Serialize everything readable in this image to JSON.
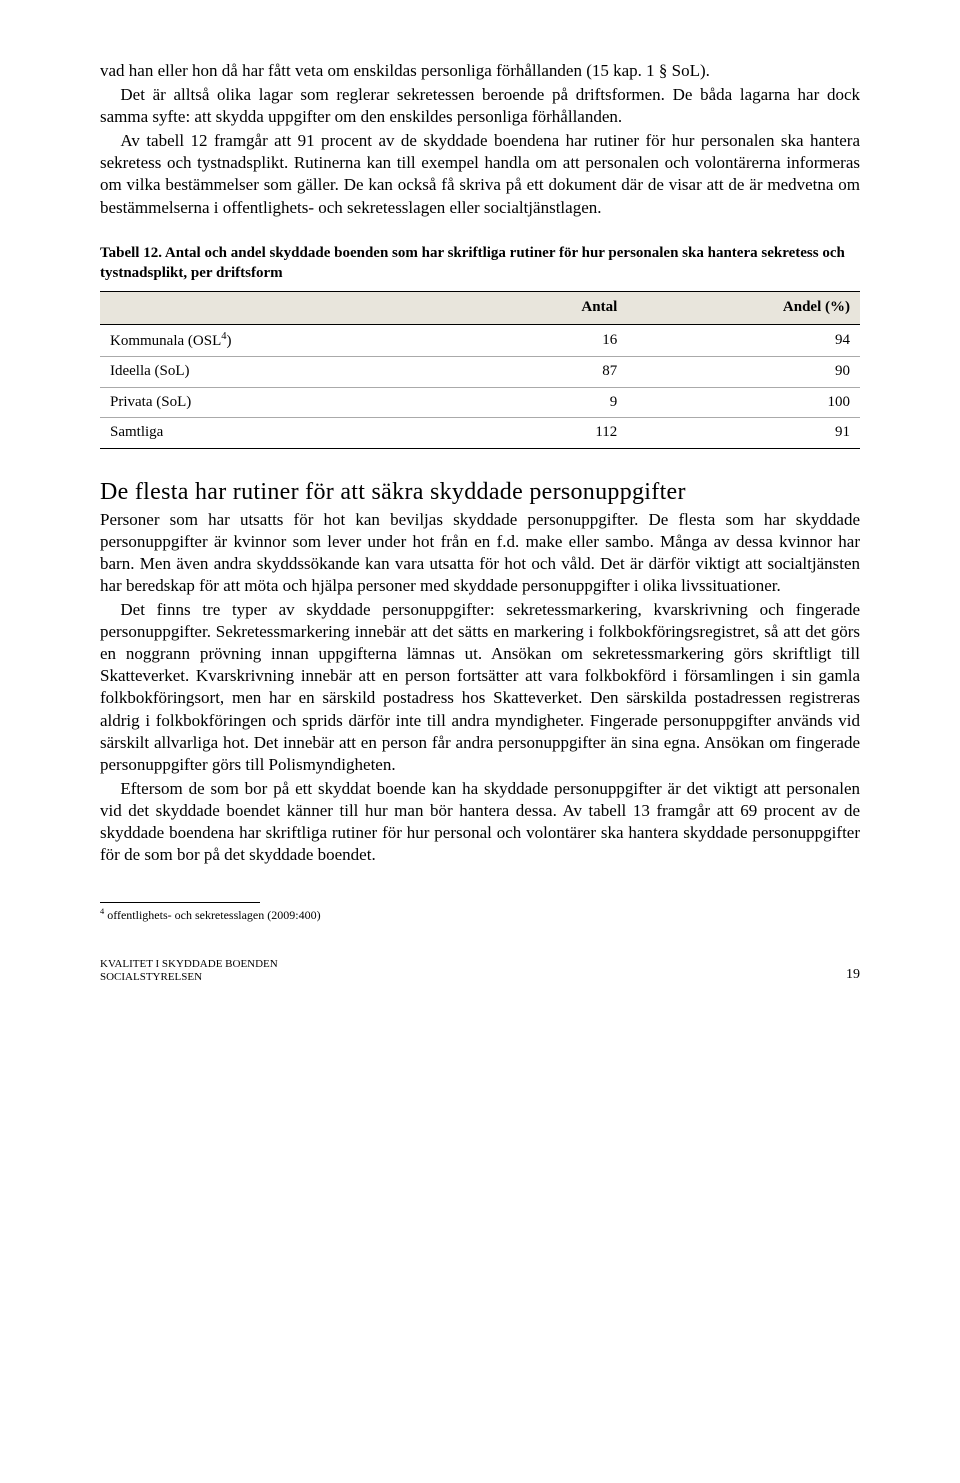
{
  "para1": "vad han eller hon då har fått veta om enskildas personliga förhållanden (15 kap. 1 § SoL).",
  "para2": "Det är alltså olika lagar som reglerar sekretessen beroende på driftsformen. De båda lagarna har dock samma syfte: att skydda uppgifter om den enskildes personliga förhållanden.",
  "para3": "Av tabell 12 framgår att 91 procent av de skyddade boendena har rutiner för hur personalen ska hantera sekretess och tystnadsplikt. Rutinerna kan till exempel handla om att personalen och volontärerna informeras om vilka bestämmelser som gäller. De kan också få skriva på ett dokument där de visar att de är medvetna om bestämmelserna i offentlighets- och sekretesslagen eller socialtjänstlagen.",
  "table": {
    "caption": "Tabell 12. Antal och andel skyddade boenden som har skriftliga rutiner för hur personalen ska hantera sekretess och tystnadsplikt, per driftsform",
    "columns": [
      "",
      "Antal",
      "Andel (%)"
    ],
    "rows": [
      {
        "label": "Kommunala (OSL",
        "sup": "4",
        "labelAfter": ")",
        "c1": "16",
        "c2": "94"
      },
      {
        "label": "Ideella (SoL)",
        "sup": "",
        "labelAfter": "",
        "c1": "87",
        "c2": "90"
      },
      {
        "label": "Privata (SoL)",
        "sup": "",
        "labelAfter": "",
        "c1": "9",
        "c2": "100"
      },
      {
        "label": "Samtliga",
        "sup": "",
        "labelAfter": "",
        "c1": "112",
        "c2": "91"
      }
    ]
  },
  "heading": "De flesta har rutiner för att säkra skyddade personuppgifter",
  "body1": "Personer som har utsatts för hot kan beviljas skyddade personuppgifter. De flesta som har skyddade personuppgifter är kvinnor som lever under hot från en f.d. make eller sambo. Många av dessa kvinnor har barn. Men även andra skyddssökande kan vara utsatta för hot och våld. Det är därför viktigt att socialtjänsten har beredskap för att möta och hjälpa personer med skyddade personuppgifter i olika livssituationer.",
  "body2": "Det finns tre typer av skyddade personuppgifter: sekretessmarkering, kvarskrivning och fingerade personuppgifter. Sekretessmarkering innebär att det sätts en markering i folkbokföringsregistret, så att det görs en noggrann prövning innan uppgifterna lämnas ut. Ansökan om sekretessmarkering görs skriftligt till Skatteverket. Kvarskrivning innebär att en person fortsätter att vara folkbokförd i församlingen i sin gamla folkbokföringsort, men har en särskild postadress hos Skatteverket. Den särskilda postadressen registreras aldrig i folkbokföringen och sprids därför inte till andra myndigheter. Fingerade personuppgifter används vid särskilt allvarliga hot. Det innebär att en person får andra personuppgifter än sina egna. Ansökan om fingerade personuppgifter görs till Polismyndigheten.",
  "body3": "Eftersom de som bor på ett skyddat boende kan ha skyddade personuppgifter är det viktigt att personalen vid det skyddade boendet känner till hur man bör hantera dessa. Av tabell 13 framgår att 69 procent av de skyddade boendena har skriftliga rutiner för hur personal och volontärer ska hantera skyddade personuppgifter för de som bor på det skyddade boendet.",
  "footnote": {
    "num": "4",
    "text": " offentlighets- och sekretesslagen (2009:400)"
  },
  "footer": {
    "line1": "KVALITET I SKYDDADE BOENDEN",
    "line2": "SOCIALSTYRELSEN",
    "page": "19"
  }
}
